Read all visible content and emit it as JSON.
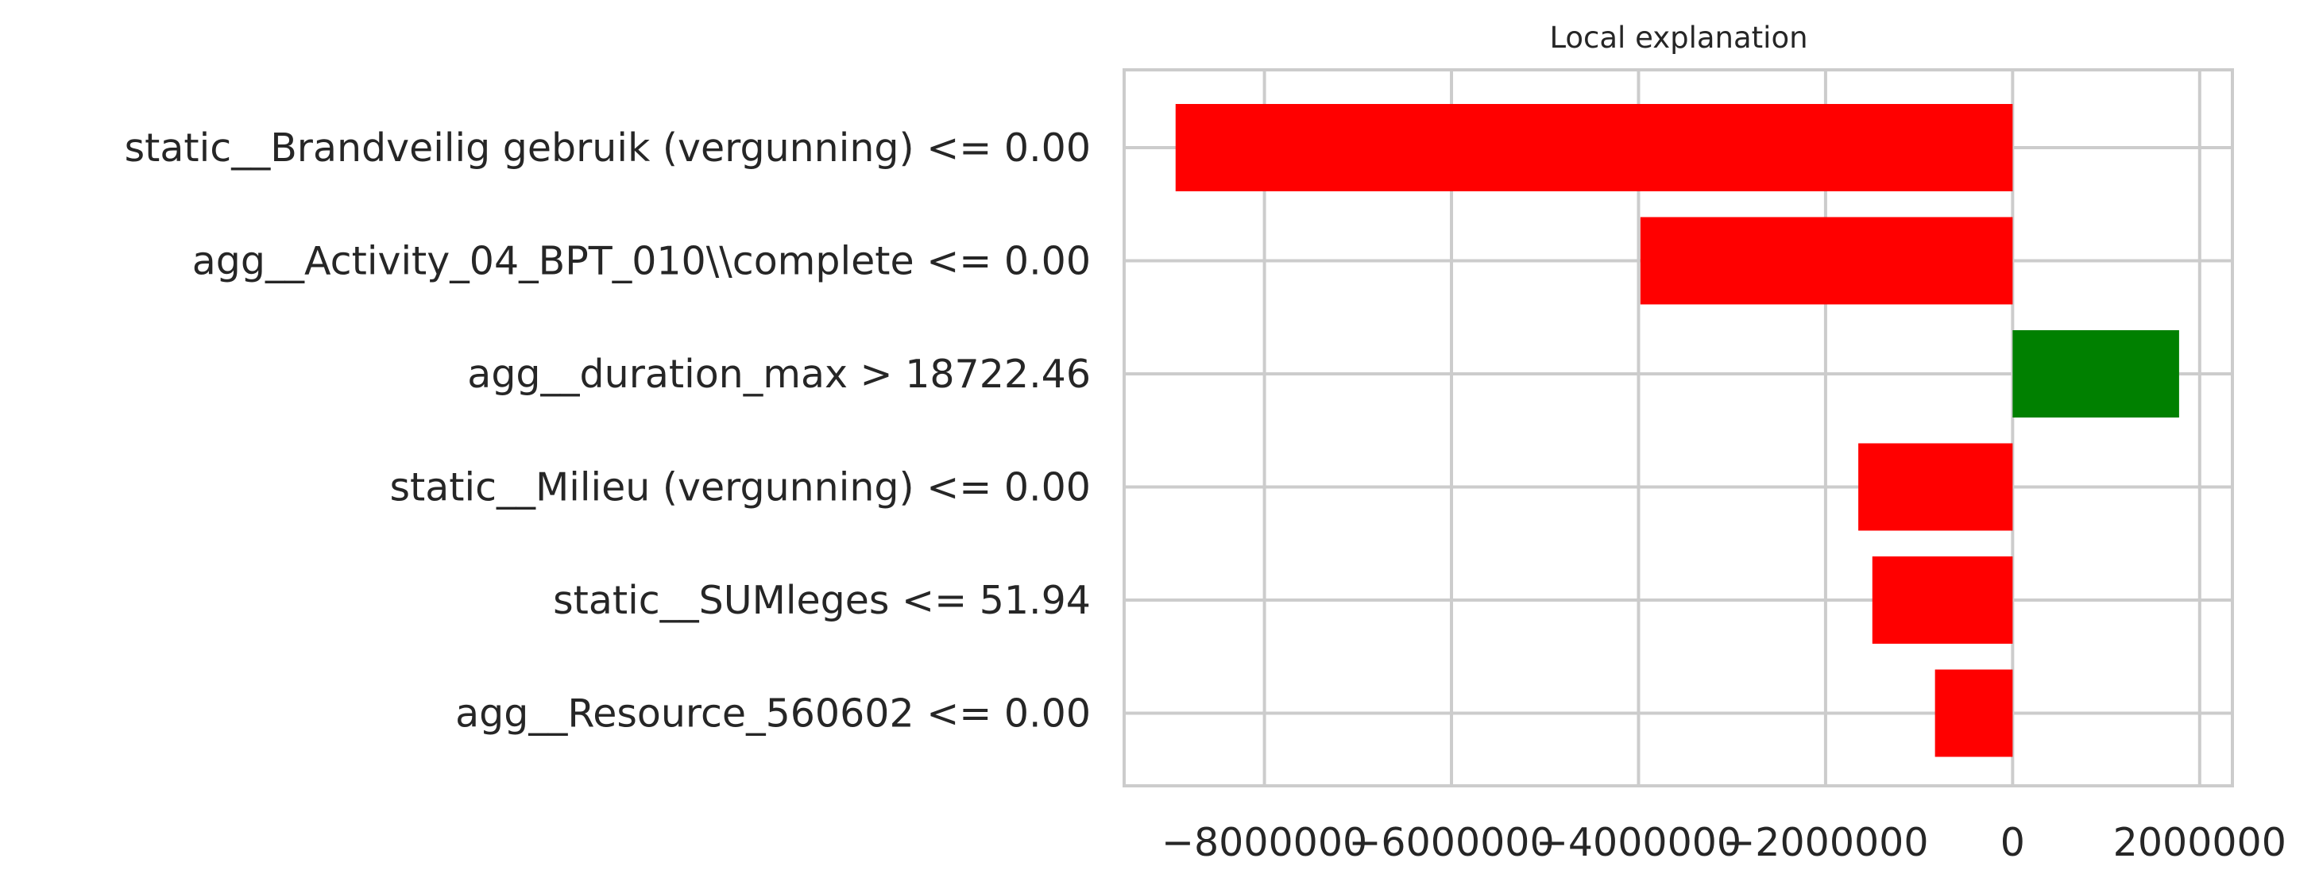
{
  "chart_data": {
    "type": "bar",
    "orientation": "horizontal",
    "title": "Local explanation",
    "xlabel": "",
    "ylabel": "",
    "categories": [
      "static__Brandveilig gebruik (vergunning) <= 0.00",
      "agg__Activity_04_BPT_010\\\\complete <= 0.00",
      "agg__duration_max > 18722.46",
      "static__Milieu (vergunning) <= 0.00",
      "static__SUMleges <= 51.94",
      "agg__Resource_560602 <= 0.00"
    ],
    "values": [
      -8950000,
      -3980000,
      1780000,
      -1650000,
      -1500000,
      -830000
    ],
    "colors": [
      "#ff0000",
      "#ff0000",
      "#008000",
      "#ff0000",
      "#ff0000",
      "#ff0000"
    ],
    "xlim": [
      -9500000,
      2350000
    ],
    "xticks": [
      -8000000,
      -6000000,
      -4000000,
      -2000000,
      0,
      2000000
    ],
    "xtick_labels": [
      "−8000000",
      "−6000000",
      "−4000000",
      "−2000000",
      "0",
      "2000000"
    ],
    "grid": true,
    "style": {
      "positive_color": "#008000",
      "negative_color": "#ff0000",
      "grid_color": "#cccccc",
      "background": "#ffffff"
    }
  }
}
